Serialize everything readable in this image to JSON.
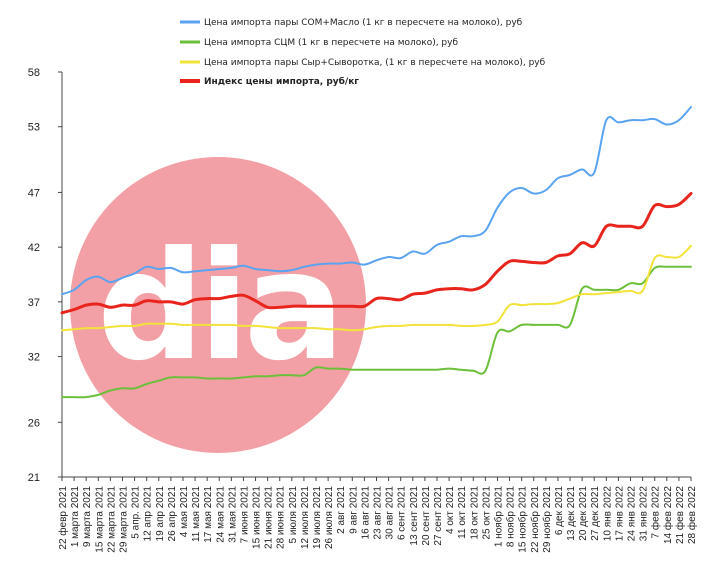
{
  "chart_data": {
    "type": "line",
    "title": "",
    "xlabel": "",
    "ylabel": "",
    "ylim": [
      21,
      58
    ],
    "yticks": [
      21,
      26,
      32,
      37,
      42,
      47,
      53,
      58
    ],
    "grid": false,
    "legend_position": "top",
    "watermark": "dia",
    "colors": {
      "som_butter": "#5aa3f0",
      "scm": "#6cbf3a",
      "cheese_whey": "#f2e33a",
      "index": "#e8241c",
      "axis": "#444444",
      "watermark": "#f2a0a6"
    },
    "x": [
      "22 февр 2021",
      "1 марта 2021",
      "9 марта 2021",
      "15 марта 2021",
      "22 марта 2021",
      "29 марта 2021",
      "5 апр. 2021",
      "12 апр 2021",
      "19 апр 2021",
      "26 апр 2021",
      "4 мая 2021",
      "11 мая 2021",
      "17 мая 2021",
      "24 мая 2021",
      "31 мая 2021",
      "7 июня 2021",
      "15 июня 2021",
      "21 июня 2021",
      "28 июня 2021",
      "5 июля 2021",
      "12 июля 2021",
      "19 июля 2021",
      "26 июля 2021",
      "2 авг 2021",
      "9 авг 2021",
      "16 авг 2021",
      "23 авг 2021",
      "30 авг 2021",
      "6 сент 2021",
      "13 сент 2021",
      "20 сент 2021",
      "27 сент 2021",
      "4 окт 2021",
      "11 окт 2021",
      "18 окт 2021",
      "25 окт 2021",
      "1 ноябр 2021",
      "8 ноябр 2021",
      "15 ноябр 2021",
      "22 ноябр 2021",
      "29 ноябр 2021",
      "6 дек 2021",
      "13 дек 2021",
      "20 дек 2021",
      "27 дек 2021",
      "10 янв 2022",
      "17 янв 2022",
      "24 янв 2022",
      "31 янв 2022",
      "7 фев 2022",
      "14 фев 2022",
      "21 фев 2022",
      "28 фев 2022"
    ],
    "series": [
      {
        "name": "Цена  импорта пары СОМ+Масло  (1 кг в пересчете на молоко),  руб",
        "color_key": "som_butter",
        "values": [
          37.7,
          38.1,
          39.0,
          39.3,
          38.8,
          39.2,
          39.6,
          40.2,
          40.0,
          40.1,
          39.7,
          39.8,
          39.9,
          40.0,
          40.1,
          40.3,
          40.0,
          39.9,
          39.8,
          39.9,
          40.2,
          40.4,
          40.5,
          40.5,
          40.6,
          40.4,
          40.8,
          41.1,
          41.0,
          41.6,
          41.4,
          42.2,
          42.5,
          43.0,
          43.0,
          43.5,
          45.6,
          47.0,
          47.4,
          46.9,
          47.2,
          48.3,
          48.6,
          49.1,
          48.8,
          53.6,
          53.4,
          53.6,
          53.6,
          53.7,
          53.2,
          53.6,
          54.8
        ]
      },
      {
        "name": "Цена  импорта СЦМ  (1 кг в пересчете на молоко), руб",
        "color_key": "scm",
        "values": [
          28.3,
          28.3,
          28.3,
          28.5,
          28.9,
          29.1,
          29.1,
          29.5,
          29.8,
          30.1,
          30.1,
          30.1,
          30.0,
          30.0,
          30.0,
          30.1,
          30.2,
          30.2,
          30.3,
          30.3,
          30.3,
          31.0,
          30.9,
          30.9,
          30.8,
          30.8,
          30.8,
          30.8,
          30.8,
          30.8,
          30.8,
          30.8,
          30.9,
          30.8,
          30.7,
          30.7,
          34.2,
          34.3,
          34.9,
          34.9,
          34.9,
          34.9,
          34.9,
          38.2,
          38.1,
          38.1,
          38.1,
          38.7,
          38.7,
          40.1,
          40.2,
          40.2,
          40.2
        ]
      },
      {
        "name": "Цена  импорта пары Сыр+Сыворотка,  (1 кг в пересчете на молоко),  руб",
        "color_key": "cheese_whey",
        "values": [
          34.4,
          34.5,
          34.6,
          34.6,
          34.7,
          34.8,
          34.8,
          35.0,
          35.0,
          35.0,
          34.9,
          34.9,
          34.9,
          34.9,
          34.9,
          34.8,
          34.8,
          34.7,
          34.6,
          34.6,
          34.6,
          34.6,
          34.5,
          34.5,
          34.4,
          34.5,
          34.7,
          34.8,
          34.8,
          34.9,
          34.9,
          34.9,
          34.9,
          34.8,
          34.8,
          34.9,
          35.2,
          36.7,
          36.7,
          36.8,
          36.8,
          36.9,
          37.3,
          37.7,
          37.7,
          37.8,
          37.9,
          38.0,
          38.0,
          41.0,
          41.1,
          41.1,
          42.1
        ]
      },
      {
        "name": "Индекс цены импорта, руб/кг",
        "color_key": "index",
        "values": [
          36.0,
          36.3,
          36.7,
          36.8,
          36.5,
          36.7,
          36.7,
          37.1,
          37.0,
          37.0,
          36.8,
          37.2,
          37.3,
          37.3,
          37.5,
          37.6,
          37.1,
          36.5,
          36.5,
          36.6,
          36.6,
          36.6,
          36.6,
          36.6,
          36.6,
          36.6,
          37.3,
          37.3,
          37.2,
          37.7,
          37.8,
          38.1,
          38.2,
          38.2,
          38.1,
          38.6,
          39.8,
          40.7,
          40.7,
          40.6,
          40.6,
          41.2,
          41.4,
          42.4,
          42.1,
          43.9,
          43.9,
          43.9,
          43.9,
          45.8,
          45.7,
          45.9,
          46.9
        ]
      }
    ]
  }
}
